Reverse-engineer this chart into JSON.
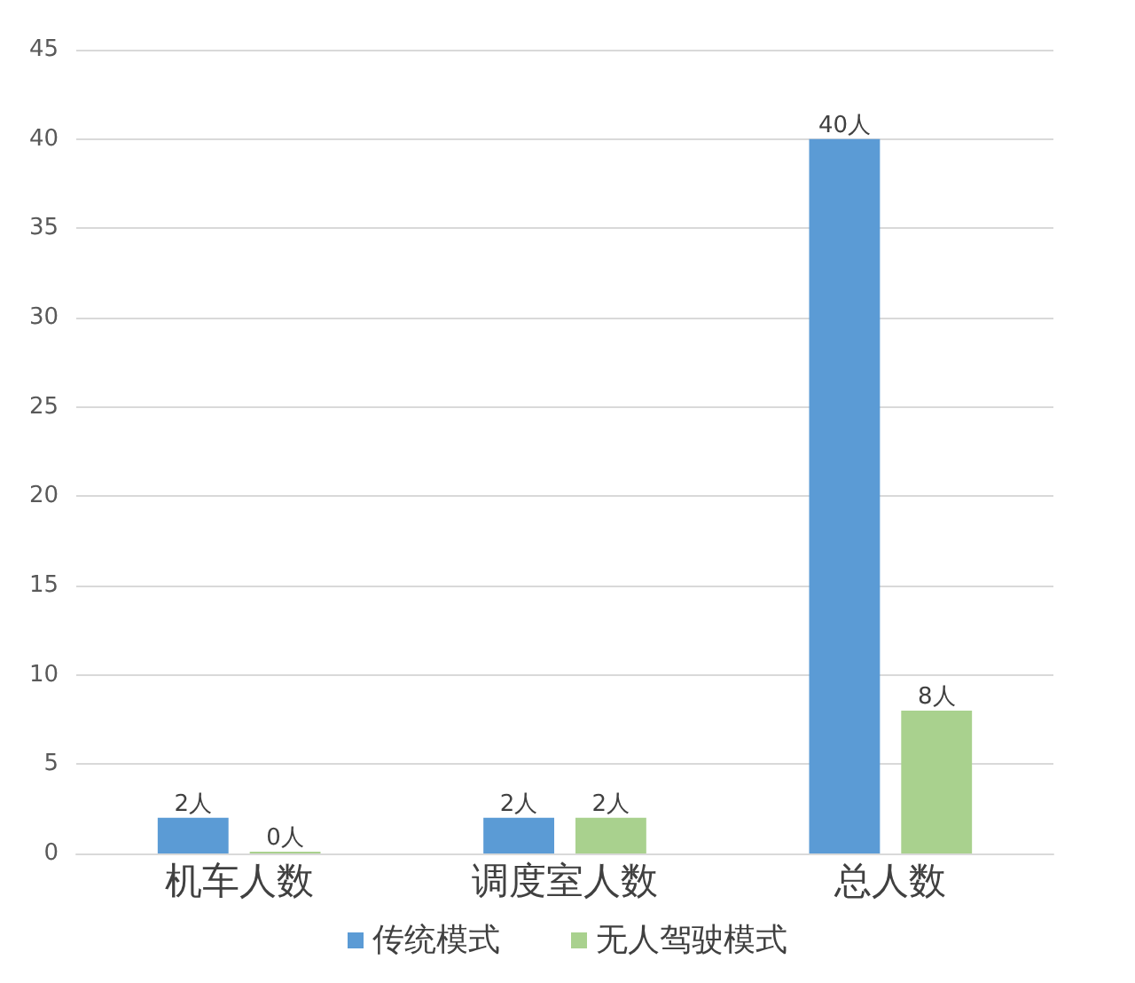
{
  "chart_data": {
    "type": "bar",
    "categories": [
      "机车人数",
      "调度室人数",
      "总人数"
    ],
    "series": [
      {
        "name": "传统模式",
        "color": "#5b9bd5",
        "values": [
          2,
          2,
          40
        ],
        "value_labels": [
          "2人",
          "2人",
          "40人"
        ]
      },
      {
        "name": "无人驾驶模式",
        "color": "#a9d18e",
        "values": [
          0,
          2,
          8
        ],
        "value_labels": [
          "0人",
          "2人",
          "8人"
        ]
      }
    ],
    "ylim": [
      0,
      45
    ],
    "yticks": [
      0,
      5,
      10,
      15,
      20,
      25,
      30,
      35,
      40,
      45
    ],
    "grid": "y",
    "legend": "bottom"
  }
}
